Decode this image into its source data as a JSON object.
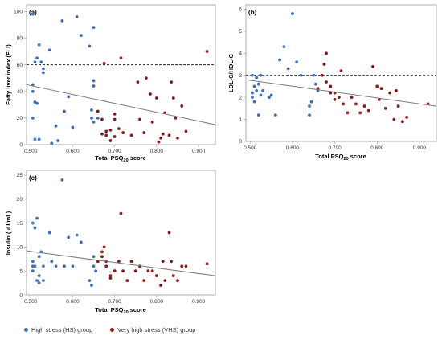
{
  "colors": {
    "hs": "#3f6fb8",
    "vhs": "#8b1a1a",
    "line": "#7a7a7a",
    "frame": "#9a9a9a"
  },
  "legend": {
    "hs_label": "High stress (HS) group",
    "vhs_label": "Very high stress (VHS) group"
  },
  "chart_data": [
    {
      "type": "scatter",
      "panel_label": "(a)",
      "xlabel": "Total PSQ",
      "xlabel_sub": "20",
      "xlabel_suffix": " score",
      "ylabel": "Fatty liver index (FLI)",
      "xlim": [
        0.49,
        0.94
      ],
      "ylim": [
        0,
        105
      ],
      "xticks": [
        "0.500",
        "0.600",
        "0.700",
        "0.800",
        "0.900"
      ],
      "xtick_values": [
        0.5,
        0.6,
        0.7,
        0.8,
        0.9
      ],
      "yticks": [
        "0",
        "20",
        "40",
        "60",
        "80",
        "100"
      ],
      "ytick_values": [
        0,
        20,
        40,
        60,
        80,
        100
      ],
      "reference_line": 60,
      "fit_line": [
        [
          0.49,
          45
        ],
        [
          0.94,
          15
        ]
      ],
      "series": [
        {
          "name": "High stress (HS) group",
          "group": "hs",
          "x": [
            0.505,
            0.51,
            0.505,
            0.515,
            0.52,
            0.525,
            0.51,
            0.505,
            0.515,
            0.505,
            0.51,
            0.52,
            0.53,
            0.53,
            0.545,
            0.56,
            0.575,
            0.59,
            0.6,
            0.61,
            0.62,
            0.64,
            0.645,
            0.65,
            0.65,
            0.65,
            0.645,
            0.65,
            0.66,
            0.58,
            0.55,
            0.565
          ],
          "y": [
            98,
            62,
            45,
            65,
            75,
            62,
            32,
            40,
            31,
            20,
            4,
            4,
            57,
            54,
            71,
            14,
            93,
            36,
            13,
            96,
            82,
            74,
            20,
            88,
            48,
            44,
            26,
            17,
            20,
            25,
            1,
            3
          ]
        },
        {
          "name": "Very high stress (VHS) group",
          "group": "vhs",
          "x": [
            0.66,
            0.67,
            0.675,
            0.68,
            0.69,
            0.7,
            0.7,
            0.71,
            0.715,
            0.72,
            0.74,
            0.755,
            0.76,
            0.77,
            0.775,
            0.785,
            0.79,
            0.8,
            0.805,
            0.81,
            0.815,
            0.82,
            0.83,
            0.835,
            0.84,
            0.845,
            0.85,
            0.86,
            0.87,
            0.67,
            0.68,
            0.69,
            0.7,
            0.92
          ],
          "y": [
            25,
            19,
            61,
            7,
            11,
            19,
            23,
            12,
            65,
            9,
            7,
            47,
            19,
            9,
            50,
            38,
            17,
            35,
            2,
            5,
            8,
            24,
            7,
            47,
            35,
            20,
            5,
            29,
            10,
            8,
            10,
            3,
            6,
            70
          ]
        }
      ]
    },
    {
      "type": "scatter",
      "panel_label": "(b)",
      "xlabel": "Total PSQ",
      "xlabel_sub": "20",
      "xlabel_suffix": " score",
      "ylabel": "LDL-C/HDL-C",
      "xlim": [
        0.49,
        0.94
      ],
      "ylim": [
        0,
        6.2
      ],
      "xticks": [
        "0.500",
        "0.600",
        "0.700",
        "0.800",
        "0.900"
      ],
      "xtick_values": [
        0.5,
        0.6,
        0.7,
        0.8,
        0.9
      ],
      "yticks": [
        "0",
        "1",
        "2",
        "3",
        "4",
        "5",
        "6"
      ],
      "ytick_values": [
        0,
        1,
        2,
        3,
        4,
        5,
        6
      ],
      "reference_line": 3.0,
      "fit_line": [
        [
          0.49,
          2.8
        ],
        [
          0.94,
          1.6
        ]
      ],
      "series": [
        {
          "name": "High stress (HS) group",
          "group": "hs",
          "x": [
            0.505,
            0.51,
            0.505,
            0.515,
            0.52,
            0.525,
            0.51,
            0.505,
            0.515,
            0.505,
            0.52,
            0.525,
            0.53,
            0.545,
            0.55,
            0.56,
            0.57,
            0.58,
            0.59,
            0.6,
            0.61,
            0.62,
            0.64,
            0.64,
            0.645,
            0.65,
            0.655,
            0.66
          ],
          "y": [
            3.0,
            2.5,
            2.2,
            2.3,
            2.6,
            2.1,
            1.8,
            2.0,
            2.9,
            2.2,
            1.2,
            3.0,
            2.3,
            2.0,
            2.1,
            1.2,
            3.7,
            4.3,
            3.3,
            5.8,
            3.6,
            3.0,
            1.2,
            1.6,
            1.8,
            3.0,
            2.6,
            2.3
          ]
        },
        {
          "name": "Very high stress (VHS) group",
          "group": "vhs",
          "x": [
            0.66,
            0.67,
            0.675,
            0.68,
            0.69,
            0.7,
            0.7,
            0.71,
            0.715,
            0.72,
            0.73,
            0.74,
            0.75,
            0.76,
            0.77,
            0.78,
            0.79,
            0.8,
            0.805,
            0.81,
            0.82,
            0.83,
            0.84,
            0.845,
            0.85,
            0.86,
            0.87,
            0.68,
            0.69,
            0.92
          ],
          "y": [
            2.4,
            3.0,
            3.5,
            4.0,
            2.5,
            2.2,
            1.9,
            2.0,
            3.2,
            1.7,
            1.3,
            2.0,
            1.7,
            1.3,
            1.6,
            1.4,
            3.4,
            2.5,
            1.9,
            2.4,
            1.5,
            2.2,
            1.0,
            2.3,
            1.6,
            0.9,
            1.1,
            2.7,
            2.2,
            1.7
          ]
        }
      ]
    },
    {
      "type": "scatter",
      "panel_label": "(c)",
      "xlabel": "Total PSQ",
      "xlabel_sub": "20",
      "xlabel_suffix": " score",
      "ylabel": "Insulin (μU/mL)",
      "xlim": [
        0.49,
        0.94
      ],
      "ylim": [
        0,
        26
      ],
      "xticks": [
        "0.500",
        "0.600",
        "0.700",
        "0.800",
        "0.900"
      ],
      "xtick_values": [
        0.5,
        0.6,
        0.7,
        0.8,
        0.9
      ],
      "yticks": [
        "0",
        "5",
        "10",
        "15",
        "20",
        "25"
      ],
      "ytick_values": [
        0,
        5,
        10,
        15,
        20,
        25
      ],
      "reference_line": null,
      "fit_line": [
        [
          0.49,
          9.2
        ],
        [
          0.94,
          4.0
        ]
      ],
      "series": [
        {
          "name": "High stress (HS) group",
          "group": "hs",
          "x": [
            0.505,
            0.51,
            0.505,
            0.515,
            0.52,
            0.525,
            0.51,
            0.505,
            0.515,
            0.505,
            0.52,
            0.53,
            0.545,
            0.55,
            0.56,
            0.575,
            0.59,
            0.6,
            0.61,
            0.62,
            0.64,
            0.645,
            0.65,
            0.65,
            0.655,
            0.66,
            0.52,
            0.53,
            0.58
          ],
          "y": [
            15,
            14,
            7,
            16,
            8,
            9,
            6,
            5,
            3,
            6,
            2.5,
            3,
            13,
            7,
            6,
            24,
            12,
            6,
            12.5,
            11,
            3,
            2,
            8,
            6,
            5,
            7,
            4,
            6,
            6
          ]
        },
        {
          "name": "Very high stress (VHS) group",
          "group": "vhs",
          "x": [
            0.66,
            0.67,
            0.675,
            0.68,
            0.69,
            0.7,
            0.71,
            0.715,
            0.72,
            0.73,
            0.74,
            0.75,
            0.76,
            0.77,
            0.78,
            0.79,
            0.8,
            0.81,
            0.815,
            0.82,
            0.83,
            0.835,
            0.84,
            0.85,
            0.86,
            0.87,
            0.67,
            0.68,
            0.69,
            0.7,
            0.92
          ],
          "y": [
            7,
            8,
            10,
            6,
            3.5,
            5,
            7,
            17,
            5,
            3,
            7,
            5,
            6,
            3,
            5,
            5,
            4,
            2,
            7,
            3,
            13,
            7,
            4,
            3,
            6,
            6,
            9,
            7,
            4,
            5,
            6.5
          ]
        }
      ]
    }
  ]
}
